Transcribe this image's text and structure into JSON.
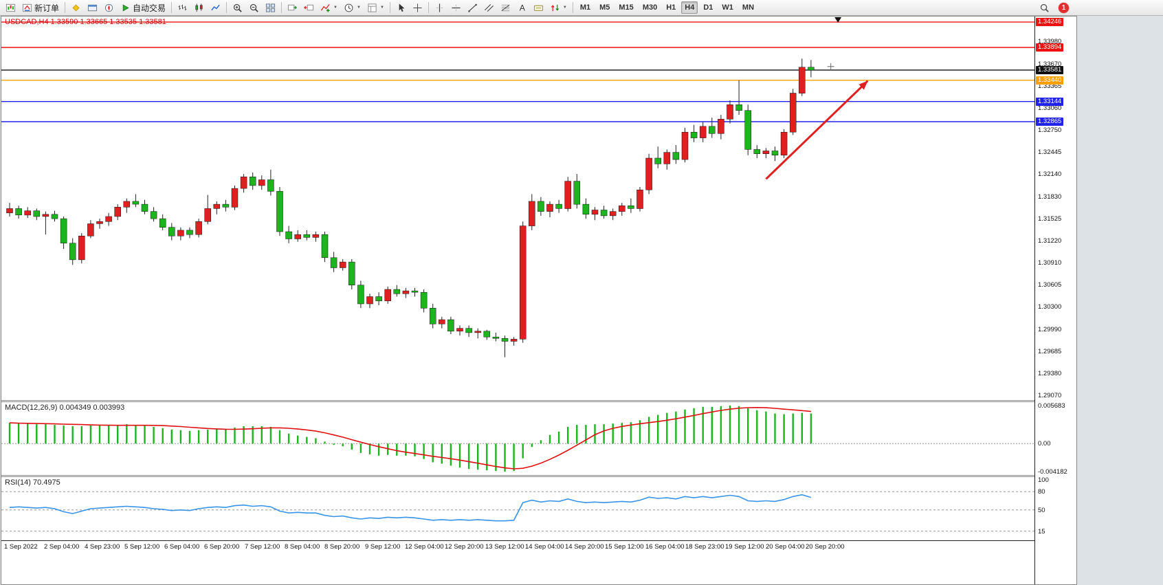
{
  "app": {
    "notification_count": "1"
  },
  "toolbar": {
    "buttons": [
      {
        "name": "new-chart",
        "icon": "new-chart"
      },
      {
        "name": "new-order",
        "icon": "new-order",
        "label": "新订单"
      },
      {
        "sep": true
      },
      {
        "name": "metaeditor",
        "icon": "metaeditor"
      },
      {
        "name": "terminal",
        "icon": "terminal"
      },
      {
        "name": "navigator",
        "icon": "navigator"
      },
      {
        "name": "auto-trading",
        "icon": "autotrading",
        "label": "自动交易"
      },
      {
        "sep": true
      },
      {
        "name": "bar-chart-mode",
        "icon": "chart-bars"
      },
      {
        "name": "candlestick-mode",
        "icon": "chart-candles"
      },
      {
        "name": "line-chart-mode",
        "icon": "chart-line"
      },
      {
        "sep": true
      },
      {
        "name": "zoom-in",
        "icon": "zoom-in"
      },
      {
        "name": "zoom-out",
        "icon": "zoom-out"
      },
      {
        "name": "tile-windows",
        "icon": "tile-windows"
      },
      {
        "sep": true
      },
      {
        "name": "auto-scroll",
        "icon": "auto-scroll"
      },
      {
        "name": "chart-shift",
        "icon": "chart-shift"
      },
      {
        "name": "indicators",
        "icon": "indicators",
        "dropdown": true
      },
      {
        "name": "periods",
        "icon": "clock",
        "dropdown": true
      },
      {
        "name": "templates",
        "icon": "templates",
        "dropdown": true
      },
      {
        "sep": true
      },
      {
        "name": "cursor",
        "icon": "cursor"
      },
      {
        "name": "crosshair",
        "icon": "crosshair"
      },
      {
        "sep": true
      },
      {
        "name": "vertical-line",
        "icon": "vline"
      },
      {
        "name": "horizontal-line",
        "icon": "hline"
      },
      {
        "name": "trendline",
        "icon": "trendline"
      },
      {
        "name": "equidistant-channel",
        "icon": "channel"
      },
      {
        "name": "fibonacci",
        "icon": "fibonacci"
      },
      {
        "name": "text",
        "icon": "text"
      },
      {
        "name": "text-label",
        "icon": "label"
      },
      {
        "name": "arrows",
        "icon": "arrows",
        "dropdown": true
      },
      {
        "sep": true
      }
    ],
    "timeframes": [
      "M1",
      "M5",
      "M15",
      "M30",
      "H1",
      "H4",
      "D1",
      "W1",
      "MN"
    ],
    "active_timeframe": "H4"
  },
  "chart_data": [
    {
      "type": "candlestick",
      "title": "USDCAD,H4 1.33590 1.33665 1.33535 1.33581",
      "symbol": "USDCAD",
      "timeframe": "H4",
      "ohlc_values": {
        "open": "1.33590",
        "high": "1.33665",
        "low": "1.33535",
        "close": "1.33581"
      },
      "bull_color": "#e02020",
      "bear_color": "#1db51d",
      "ohlc": [
        [
          1.316,
          1.3174,
          1.3155,
          1.3166
        ],
        [
          1.3166,
          1.317,
          1.3152,
          1.3157
        ],
        [
          1.3157,
          1.3168,
          1.3153,
          1.3163
        ],
        [
          1.3163,
          1.3166,
          1.315,
          1.3155
        ],
        [
          1.3155,
          1.3162,
          1.313,
          1.3158
        ],
        [
          1.3158,
          1.3163,
          1.3148,
          1.3152
        ],
        [
          1.3152,
          1.3155,
          1.311,
          1.3118
        ],
        [
          1.3118,
          1.3125,
          1.3088,
          1.3095
        ],
        [
          1.3095,
          1.3132,
          1.309,
          1.3128
        ],
        [
          1.3128,
          1.315,
          1.3125,
          1.3145
        ],
        [
          1.3145,
          1.3152,
          1.3138,
          1.3148
        ],
        [
          1.3148,
          1.316,
          1.3142,
          1.3155
        ],
        [
          1.3155,
          1.3172,
          1.315,
          1.3168
        ],
        [
          1.3168,
          1.318,
          1.316,
          1.3176
        ],
        [
          1.3176,
          1.3186,
          1.3168,
          1.3172
        ],
        [
          1.3172,
          1.3178,
          1.3158,
          1.3162
        ],
        [
          1.3162,
          1.3168,
          1.3148,
          1.3152
        ],
        [
          1.3152,
          1.3158,
          1.3136,
          1.314
        ],
        [
          1.314,
          1.3146,
          1.3122,
          1.3128
        ],
        [
          1.3128,
          1.314,
          1.3122,
          1.3136
        ],
        [
          1.3136,
          1.314,
          1.3125,
          1.313
        ],
        [
          1.313,
          1.3152,
          1.3126,
          1.3148
        ],
        [
          1.3148,
          1.3185,
          1.3144,
          1.3166
        ],
        [
          1.3166,
          1.3176,
          1.3158,
          1.3172
        ],
        [
          1.3172,
          1.3178,
          1.3162,
          1.3168
        ],
        [
          1.3168,
          1.3198,
          1.3164,
          1.3194
        ],
        [
          1.3194,
          1.3214,
          1.3188,
          1.321
        ],
        [
          1.321,
          1.3216,
          1.3192,
          1.3198
        ],
        [
          1.3198,
          1.3212,
          1.3192,
          1.3206
        ],
        [
          1.3206,
          1.322,
          1.3184,
          1.319
        ],
        [
          1.319,
          1.3196,
          1.3128,
          1.3134
        ],
        [
          1.3134,
          1.3142,
          1.3118,
          1.3124
        ],
        [
          1.3124,
          1.3136,
          1.312,
          1.313
        ],
        [
          1.313,
          1.3136,
          1.3122,
          1.3126
        ],
        [
          1.3126,
          1.3134,
          1.312,
          1.313
        ],
        [
          1.313,
          1.3134,
          1.3092,
          1.3098
        ],
        [
          1.3098,
          1.3106,
          1.3078,
          1.3084
        ],
        [
          1.3084,
          1.3096,
          1.308,
          1.3092
        ],
        [
          1.3092,
          1.3096,
          1.3054,
          1.306
        ],
        [
          1.306,
          1.3066,
          1.3028,
          1.3034
        ],
        [
          1.3034,
          1.3048,
          1.3028,
          1.3044
        ],
        [
          1.3044,
          1.305,
          1.3032,
          1.3038
        ],
        [
          1.3038,
          1.3058,
          1.3034,
          1.3054
        ],
        [
          1.3054,
          1.306,
          1.3044,
          1.3048
        ],
        [
          1.3048,
          1.3056,
          1.3042,
          1.3052
        ],
        [
          1.3052,
          1.3056,
          1.3044,
          1.305
        ],
        [
          1.305,
          1.3054,
          1.3022,
          1.3028
        ],
        [
          1.3028,
          1.3034,
          1.3,
          1.3006
        ],
        [
          1.3006,
          1.3016,
          1.3,
          1.3012
        ],
        [
          1.3012,
          1.3016,
          1.2992,
          1.2996
        ],
        [
          1.2996,
          1.3004,
          1.299,
          1.3
        ],
        [
          1.3,
          1.3004,
          1.2988,
          1.2994
        ],
        [
          1.2994,
          1.3,
          1.2986,
          1.2996
        ],
        [
          1.2996,
          1.2998,
          1.2984,
          1.2988
        ],
        [
          1.2988,
          1.2994,
          1.2982,
          1.2986
        ],
        [
          1.2986,
          1.299,
          1.296,
          1.2982
        ],
        [
          1.2982,
          1.2988,
          1.2976,
          1.2985
        ],
        [
          1.2985,
          1.3148,
          1.298,
          1.3142
        ],
        [
          1.3142,
          1.3186,
          1.3136,
          1.3176
        ],
        [
          1.3176,
          1.3182,
          1.3156,
          1.3162
        ],
        [
          1.3162,
          1.3176,
          1.3154,
          1.3172
        ],
        [
          1.3172,
          1.3178,
          1.316,
          1.3166
        ],
        [
          1.3166,
          1.321,
          1.3162,
          1.3204
        ],
        [
          1.3204,
          1.3214,
          1.3166,
          1.3172
        ],
        [
          1.3172,
          1.318,
          1.3152,
          1.3158
        ],
        [
          1.3158,
          1.3168,
          1.315,
          1.3164
        ],
        [
          1.3164,
          1.317,
          1.3152,
          1.3156
        ],
        [
          1.3156,
          1.3166,
          1.315,
          1.3162
        ],
        [
          1.3162,
          1.3174,
          1.3156,
          1.317
        ],
        [
          1.317,
          1.318,
          1.316,
          1.3166
        ],
        [
          1.3166,
          1.3196,
          1.3162,
          1.3192
        ],
        [
          1.3192,
          1.3242,
          1.3186,
          1.3236
        ],
        [
          1.3236,
          1.3252,
          1.3222,
          1.3228
        ],
        [
          1.3228,
          1.3248,
          1.322,
          1.3244
        ],
        [
          1.3244,
          1.3254,
          1.3228,
          1.3234
        ],
        [
          1.3234,
          1.3278,
          1.323,
          1.3272
        ],
        [
          1.3272,
          1.3282,
          1.3258,
          1.3264
        ],
        [
          1.3264,
          1.3286,
          1.3258,
          1.328
        ],
        [
          1.328,
          1.3292,
          1.3264,
          1.327
        ],
        [
          1.327,
          1.3296,
          1.3262,
          1.329
        ],
        [
          1.329,
          1.3316,
          1.3284,
          1.331
        ],
        [
          1.331,
          1.3344,
          1.3296,
          1.3302
        ],
        [
          1.3302,
          1.331,
          1.324,
          1.3248
        ],
        [
          1.3248,
          1.3254,
          1.3236,
          1.3242
        ],
        [
          1.3242,
          1.325,
          1.3236,
          1.3246
        ],
        [
          1.3246,
          1.3252,
          1.3232,
          1.324
        ],
        [
          1.324,
          1.3276,
          1.3236,
          1.3272
        ],
        [
          1.3272,
          1.3332,
          1.3268,
          1.3326
        ],
        [
          1.3326,
          1.3374,
          1.3322,
          1.3362
        ],
        [
          1.3362,
          1.3372,
          1.3348,
          1.3358
        ]
      ],
      "y_ticks": [
        "1.33980",
        "1.33670",
        "1.33365",
        "1.33060",
        "1.32750",
        "1.32445",
        "1.32140",
        "1.31830",
        "1.31525",
        "1.31220",
        "1.30910",
        "1.30605",
        "1.30300",
        "1.29990",
        "1.29685",
        "1.29380",
        "1.29070"
      ],
      "hlines": [
        {
          "price": 1.34246,
          "color": "#ee1111",
          "badge": "1.34246"
        },
        {
          "price": 1.33894,
          "color": "#ee1111",
          "badge": "1.33894"
        },
        {
          "price": 1.33581,
          "color": "#111111",
          "badge": "1.33581",
          "current": true
        },
        {
          "price": 1.3344,
          "color": "#ffa000",
          "badge": "1.33440"
        },
        {
          "price": 1.33144,
          "color": "#2222ee",
          "badge": "1.33144"
        },
        {
          "price": 1.32865,
          "color": "#2222ee",
          "badge": "1.32865"
        }
      ],
      "x_labels": [
        "1 Sep 2022",
        "2 Sep 04:00",
        "4 Sep 23:00",
        "5 Sep 12:00",
        "6 Sep 04:00",
        "6 Sep 20:00",
        "7 Sep 12:00",
        "8 Sep 04:00",
        "8 Sep 20:00",
        "9 Sep 12:00",
        "12 Sep 04:00",
        "12 Sep 20:00",
        "13 Sep 12:00",
        "14 Sep 04:00",
        "14 Sep 20:00",
        "15 Sep 12:00",
        "16 Sep 04:00",
        "18 Sep 23:00",
        "19 Sep 12:00",
        "20 Sep 04:00",
        "20 Sep 20:00"
      ],
      "annotations": [
        {
          "type": "arrow",
          "color": "#e02020",
          "from": {
            "bar": 84,
            "price": 1.3207
          },
          "to": {
            "bar": 95.3,
            "price": 1.3343
          }
        },
        {
          "type": "end-marker",
          "bar": 92
        },
        {
          "type": "cursor-cross",
          "bar": 91.2,
          "price": 1.3363
        }
      ]
    },
    {
      "type": "bar",
      "title": "MACD(12,26,9) 0.004349 0.003993",
      "indicator": "MACD",
      "params": "12,26,9",
      "main_value": "0.004349",
      "signal_value": "0.003993",
      "color": "#1db51d",
      "signal_color": "#e01010",
      "signal_period": 9,
      "histogram": [
        0.0031,
        0.003,
        0.003,
        0.0029,
        0.0029,
        0.0028,
        0.0027,
        0.0026,
        0.0026,
        0.0027,
        0.0027,
        0.0028,
        0.0028,
        0.0029,
        0.0028,
        0.0027,
        0.0025,
        0.0023,
        0.0021,
        0.002,
        0.0019,
        0.002,
        0.0021,
        0.0022,
        0.0022,
        0.0024,
        0.0026,
        0.0026,
        0.0026,
        0.0025,
        0.002,
        0.0015,
        0.0012,
        0.001,
        0.0008,
        0.0003,
        -0.0002,
        -0.0004,
        -0.0009,
        -0.0014,
        -0.0016,
        -0.0018,
        -0.0017,
        -0.0018,
        -0.0018,
        -0.0019,
        -0.0023,
        -0.0028,
        -0.003,
        -0.0033,
        -0.0036,
        -0.0038,
        -0.0039,
        -0.004,
        -0.0041,
        -0.0042,
        -0.0041,
        -0.0022,
        -0.0005,
        0.0005,
        0.0013,
        0.0018,
        0.0025,
        0.0028,
        0.0028,
        0.0029,
        0.0029,
        0.003,
        0.0031,
        0.0032,
        0.0035,
        0.004,
        0.0043,
        0.0046,
        0.0048,
        0.0051,
        0.0053,
        0.0055,
        0.0055,
        0.0056,
        0.0057,
        0.0056,
        0.0053,
        0.005,
        0.0048,
        0.0045,
        0.0044,
        0.0045,
        0.0046,
        0.0045
      ],
      "y_ticks": [
        {
          "value": 0.005683,
          "label": "0.005683"
        },
        {
          "value": 0,
          "label": "0.00"
        },
        {
          "value": -0.004182,
          "label": "-0.004182"
        }
      ],
      "y_range": [
        -0.0047,
        0.0062
      ]
    },
    {
      "type": "line",
      "title": "RSI(14) 70.4975",
      "indicator": "RSI",
      "params": "14",
      "value": "70.4975",
      "color": "#3894e8",
      "values": [
        54,
        55,
        54,
        53,
        54,
        52,
        47,
        44,
        48,
        52,
        53,
        54,
        55,
        56,
        55,
        54,
        52,
        51,
        49,
        50,
        49,
        52,
        54,
        55,
        54,
        57,
        58,
        56,
        57,
        55,
        48,
        45,
        46,
        45,
        45,
        41,
        39,
        40,
        37,
        35,
        37,
        36,
        38,
        37,
        38,
        37,
        35,
        33,
        34,
        33,
        34,
        33,
        34,
        33,
        32,
        32,
        33,
        62,
        66,
        63,
        65,
        64,
        68,
        64,
        62,
        63,
        62,
        63,
        64,
        63,
        66,
        71,
        69,
        70,
        68,
        72,
        70,
        72,
        70,
        72,
        74,
        72,
        65,
        64,
        65,
        64,
        67,
        72,
        75,
        70.5
      ],
      "levels": [
        {
          "value": 100,
          "label": "100",
          "dashed": false
        },
        {
          "value": 80,
          "label": "80",
          "dashed": true
        },
        {
          "value": 50,
          "label": "50",
          "dashed": true
        },
        {
          "value": 15,
          "label": "15",
          "dashed": true
        }
      ],
      "y_range": [
        0,
        104
      ]
    }
  ]
}
